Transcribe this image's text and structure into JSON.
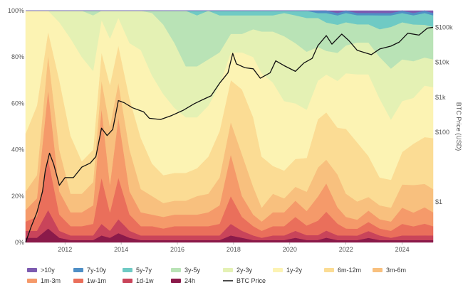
{
  "chart_data": {
    "type": "area",
    "stacked": true,
    "normalized_percent": true,
    "x_unit": "year",
    "x_range": [
      2010.6,
      2025.1
    ],
    "x_ticks": [
      "2012",
      "2014",
      "2016",
      "2018",
      "2020",
      "2022",
      "2024"
    ],
    "y_left_ticks": [
      "0%",
      "20%",
      "40%",
      "60%",
      "80%",
      "100%"
    ],
    "y_left_range": [
      0,
      100
    ],
    "y_right_label": "BTC Price (USD)",
    "y_right_scale": "log",
    "y_right_range": [
      0.07,
      300000
    ],
    "y_right_ticks": [
      {
        "label": "$1",
        "value": 1
      },
      {
        "label": "$100",
        "value": 100
      },
      {
        "label": "$1k",
        "value": 1000
      },
      {
        "label": "$10k",
        "value": 10000
      },
      {
        "label": "$100k",
        "value": 100000
      }
    ],
    "x": [
      2010.6,
      2011.0,
      2011.4,
      2011.8,
      2012.2,
      2012.6,
      2013.0,
      2013.3,
      2013.6,
      2013.9,
      2014.3,
      2014.7,
      2015.1,
      2015.5,
      2015.9,
      2016.3,
      2016.7,
      2017.1,
      2017.5,
      2017.9,
      2018.3,
      2018.7,
      2019.0,
      2019.4,
      2019.8,
      2020.2,
      2020.6,
      2021.0,
      2021.3,
      2021.7,
      2022.0,
      2022.4,
      2022.8,
      2023.2,
      2023.6,
      2024.0,
      2024.4,
      2024.8,
      2025.1
    ],
    "series": [
      {
        "name": "24h",
        "color": "#8b1a4a",
        "values": [
          2,
          2,
          6,
          2,
          1,
          1,
          1,
          3,
          2,
          4,
          2,
          1,
          1,
          1,
          1,
          1,
          1,
          1,
          1,
          3,
          2,
          1,
          1,
          1,
          1,
          2,
          1,
          1,
          2,
          1,
          1,
          1,
          2,
          1,
          1,
          1,
          1,
          1,
          1
        ]
      },
      {
        "name": "1d-1w",
        "color": "#c9445a",
        "values": [
          3,
          3,
          8,
          3,
          2,
          2,
          2,
          5,
          3,
          6,
          3,
          2,
          2,
          2,
          2,
          2,
          2,
          2,
          2,
          5,
          3,
          2,
          1,
          2,
          2,
          3,
          2,
          2,
          3,
          2,
          2,
          2,
          3,
          2,
          1,
          2,
          2,
          2,
          2
        ]
      },
      {
        "name": "1w-1m",
        "color": "#ea6f5b",
        "values": [
          4,
          6,
          22,
          7,
          4,
          4,
          5,
          20,
          8,
          18,
          7,
          4,
          4,
          3,
          4,
          4,
          4,
          4,
          5,
          12,
          6,
          4,
          3,
          4,
          4,
          6,
          4,
          6,
          8,
          5,
          3,
          3,
          4,
          3,
          3,
          5,
          4,
          5,
          4
        ]
      },
      {
        "name": "1m-3m",
        "color": "#f59a6a",
        "values": [
          5,
          8,
          30,
          10,
          6,
          6,
          8,
          30,
          12,
          26,
          10,
          6,
          5,
          5,
          5,
          5,
          5,
          6,
          8,
          18,
          9,
          5,
          4,
          6,
          6,
          7,
          6,
          10,
          12,
          7,
          5,
          4,
          5,
          4,
          4,
          7,
          6,
          7,
          6
        ]
      },
      {
        "name": "3m-6m",
        "color": "#f8c07e",
        "values": [
          8,
          10,
          15,
          18,
          8,
          8,
          10,
          12,
          25,
          15,
          18,
          10,
          8,
          6,
          6,
          6,
          8,
          8,
          12,
          14,
          18,
          12,
          6,
          8,
          6,
          6,
          8,
          12,
          10,
          14,
          10,
          8,
          6,
          6,
          6,
          10,
          12,
          10,
          10
        ]
      },
      {
        "name": "6m-12m",
        "color": "#fbdc94",
        "values": [
          25,
          30,
          10,
          30,
          25,
          14,
          14,
          12,
          18,
          16,
          22,
          22,
          14,
          12,
          12,
          12,
          12,
          16,
          20,
          18,
          28,
          30,
          22,
          12,
          12,
          12,
          14,
          20,
          20,
          20,
          28,
          26,
          18,
          12,
          12,
          14,
          18,
          20,
          22
        ]
      },
      {
        "name": "1y-2y",
        "color": "#fcf3b3",
        "values": [
          53,
          41,
          9,
          25,
          42,
          45,
          34,
          14,
          20,
          12,
          24,
          38,
          38,
          35,
          28,
          24,
          22,
          22,
          20,
          12,
          16,
          26,
          36,
          36,
          30,
          24,
          20,
          16,
          16,
          20,
          24,
          30,
          36,
          34,
          26,
          22,
          20,
          22,
          22
        ]
      },
      {
        "name": "2y-3y",
        "color": "#e4f1b4",
        "values": [
          0,
          0,
          0,
          5,
          12,
          20,
          24,
          4,
          12,
          3,
          14,
          17,
          27,
          30,
          28,
          22,
          22,
          20,
          14,
          8,
          8,
          12,
          18,
          22,
          28,
          26,
          24,
          14,
          10,
          12,
          12,
          14,
          14,
          18,
          22,
          18,
          16,
          12,
          12
        ]
      },
      {
        "name": "3y-5y",
        "color": "#b9e3b6",
        "values": [
          0,
          0,
          0,
          0,
          0,
          0,
          2,
          0,
          0,
          0,
          0,
          0,
          1,
          6,
          14,
          24,
          22,
          21,
          16,
          8,
          8,
          6,
          7,
          7,
          10,
          12,
          14,
          12,
          12,
          12,
          10,
          8,
          8,
          12,
          18,
          16,
          16,
          14,
          14
        ]
      },
      {
        "name": "5y-7y",
        "color": "#6fcac4",
        "values": [
          0,
          0,
          0,
          0,
          0,
          0,
          0,
          0,
          0,
          0,
          0,
          0,
          0,
          0,
          0,
          0,
          2,
          0,
          2,
          2,
          2,
          2,
          2,
          2,
          1,
          2,
          3,
          2,
          4,
          4,
          4,
          4,
          4,
          6,
          5,
          4,
          4,
          5,
          5
        ]
      },
      {
        "name": "7y-10y",
        "color": "#4f8fc6",
        "values": [
          0,
          0,
          0,
          0,
          0,
          0,
          0,
          0,
          0,
          0,
          0,
          0,
          0,
          0,
          0,
          0,
          0,
          0,
          0,
          0,
          0,
          0,
          0,
          0,
          0,
          0,
          0,
          1,
          1,
          1,
          1,
          1,
          1,
          1,
          1,
          1,
          1,
          1,
          1
        ]
      },
      {
        "name": ">10y",
        "color": "#7d5bb0",
        "values": [
          0,
          0,
          0,
          0,
          0,
          0,
          0,
          0,
          0,
          0,
          0,
          0,
          0,
          0,
          0,
          0,
          0,
          0,
          0,
          0,
          0,
          0,
          0,
          0,
          0,
          0,
          0,
          0,
          0,
          1,
          0,
          1,
          1,
          1,
          1,
          0,
          1,
          0,
          1
        ]
      }
    ],
    "price_line": {
      "name": "BTC Price",
      "color": "#111111",
      "points": [
        [
          2010.6,
          0.07
        ],
        [
          2010.8,
          0.2
        ],
        [
          2011.0,
          0.5
        ],
        [
          2011.2,
          2
        ],
        [
          2011.3,
          8
        ],
        [
          2011.45,
          25
        ],
        [
          2011.6,
          12
        ],
        [
          2011.8,
          3
        ],
        [
          2012.0,
          5
        ],
        [
          2012.3,
          5
        ],
        [
          2012.6,
          10
        ],
        [
          2012.9,
          13
        ],
        [
          2013.1,
          20
        ],
        [
          2013.3,
          130
        ],
        [
          2013.5,
          80
        ],
        [
          2013.7,
          120
        ],
        [
          2013.9,
          800
        ],
        [
          2014.1,
          700
        ],
        [
          2014.4,
          500
        ],
        [
          2014.8,
          380
        ],
        [
          2015.0,
          250
        ],
        [
          2015.4,
          230
        ],
        [
          2015.8,
          300
        ],
        [
          2016.2,
          420
        ],
        [
          2016.6,
          650
        ],
        [
          2016.9,
          850
        ],
        [
          2017.2,
          1100
        ],
        [
          2017.5,
          2500
        ],
        [
          2017.8,
          5000
        ],
        [
          2017.97,
          18000
        ],
        [
          2018.1,
          9000
        ],
        [
          2018.4,
          7000
        ],
        [
          2018.7,
          6500
        ],
        [
          2018.95,
          3500
        ],
        [
          2019.3,
          5000
        ],
        [
          2019.5,
          11000
        ],
        [
          2019.8,
          8000
        ],
        [
          2020.2,
          5500
        ],
        [
          2020.5,
          9500
        ],
        [
          2020.8,
          13000
        ],
        [
          2021.0,
          30000
        ],
        [
          2021.3,
          58000
        ],
        [
          2021.5,
          33000
        ],
        [
          2021.85,
          64000
        ],
        [
          2022.1,
          42000
        ],
        [
          2022.4,
          22000
        ],
        [
          2022.9,
          16500
        ],
        [
          2023.2,
          24000
        ],
        [
          2023.6,
          29000
        ],
        [
          2023.9,
          38000
        ],
        [
          2024.2,
          68000
        ],
        [
          2024.6,
          60000
        ],
        [
          2024.9,
          95000
        ],
        [
          2025.1,
          100000
        ]
      ]
    },
    "legend": {
      "placement": "bottom",
      "items": [
        {
          "label": ">10y",
          "color": "#7d5bb0",
          "kind": "area"
        },
        {
          "label": "7y-10y",
          "color": "#4f8fc6",
          "kind": "area"
        },
        {
          "label": "5y-7y",
          "color": "#6fcac4",
          "kind": "area"
        },
        {
          "label": "3y-5y",
          "color": "#b9e3b6",
          "kind": "area"
        },
        {
          "label": "2y-3y",
          "color": "#e4f1b4",
          "kind": "area"
        },
        {
          "label": "1y-2y",
          "color": "#fcf3b3",
          "kind": "area"
        },
        {
          "label": "6m-12m",
          "color": "#fbdc94",
          "kind": "area"
        },
        {
          "label": "3m-6m",
          "color": "#f8c07e",
          "kind": "area"
        },
        {
          "label": "1m-3m",
          "color": "#f59a6a",
          "kind": "area"
        },
        {
          "label": "1w-1m",
          "color": "#ea6f5b",
          "kind": "area"
        },
        {
          "label": "1d-1w",
          "color": "#c9445a",
          "kind": "area"
        },
        {
          "label": "24h",
          "color": "#8b1a4a",
          "kind": "area"
        },
        {
          "label": "BTC Price",
          "color": "#111111",
          "kind": "line"
        }
      ]
    },
    "grid": false
  }
}
